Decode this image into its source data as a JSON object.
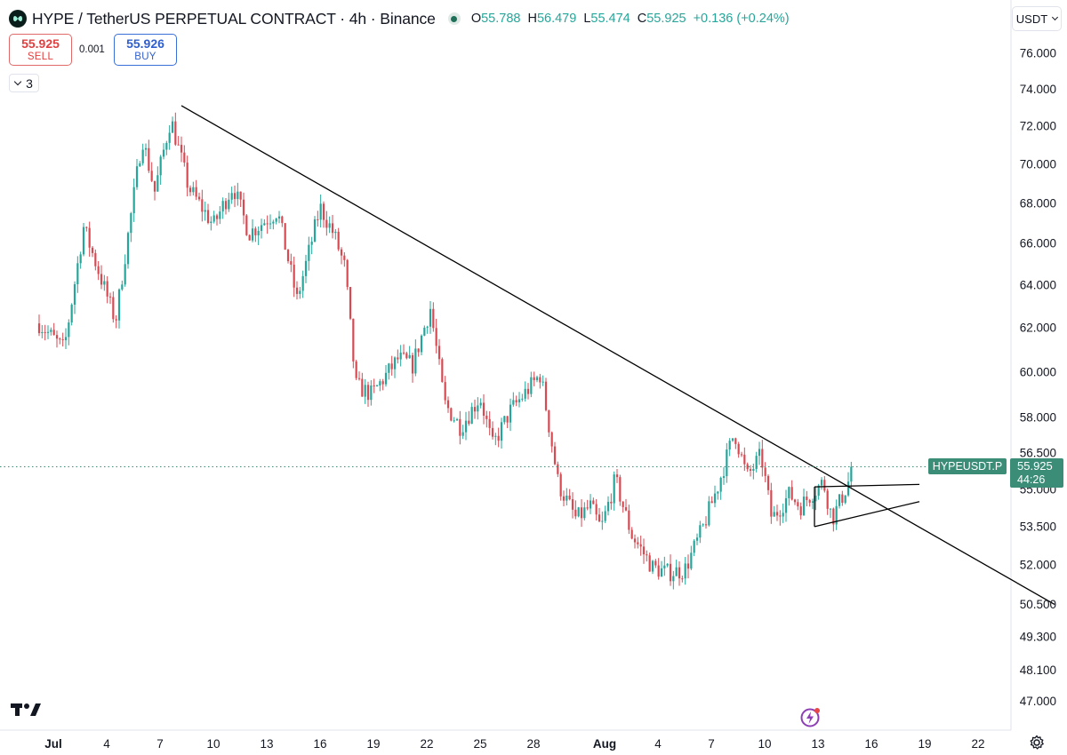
{
  "header": {
    "symbol_logo": "hyperliquid-logo",
    "title": "HYPE / TetherUS PERPETUAL CONTRACT · 4h · Binance",
    "ohlc": [
      {
        "k": "O",
        "v": "55.788"
      },
      {
        "k": "H",
        "v": "56.479"
      },
      {
        "k": "L",
        "v": "55.474"
      },
      {
        "k": "C",
        "v": "55.925"
      }
    ],
    "change": "+0.136 (+0.24%)"
  },
  "trade": {
    "sell_price": "55.925",
    "sell_label": "SELL",
    "spread": "0.001",
    "buy_price": "55.926",
    "buy_label": "BUY"
  },
  "indicators_count": "3",
  "currency": "USDT",
  "last_price": {
    "symbol": "HYPEUSDT.P",
    "price": "55.925",
    "countdown": "44:26"
  },
  "colors": {
    "up": "#26a69a",
    "down": "#d84a52",
    "label_bg": "#3c8d78",
    "trendline": "#000000"
  },
  "icons": [
    "tradingview-logo",
    "lightning-icon",
    "gear-icon",
    "chevron-down-icon"
  ],
  "chart_data": {
    "type": "candlestick",
    "title": "HYPE / TetherUS PERPETUAL CONTRACT · 4h · Binance",
    "interval": "4h",
    "y_scale": "log",
    "ylim": [
      46.3,
      77.8
    ],
    "y_ticks": [
      "76.000",
      "74.000",
      "72.000",
      "70.000",
      "68.000",
      "66.000",
      "64.000",
      "62.000",
      "60.000",
      "58.000",
      "56.500",
      "55.000",
      "53.500",
      "52.000",
      "50.500",
      "49.300",
      "48.100",
      "47.000"
    ],
    "y_tick_values": [
      76,
      74,
      72,
      70,
      68,
      66,
      64,
      62,
      60,
      58,
      56.5,
      55,
      53.5,
      52,
      50.5,
      49.3,
      48.1,
      47
    ],
    "x_ticks": [
      "Jul",
      "4",
      "7",
      "10",
      "13",
      "16",
      "19",
      "22",
      "25",
      "28",
      "Aug",
      "4",
      "7",
      "10",
      "13",
      "16",
      "19",
      "22"
    ],
    "x_tick_days": [
      0,
      3,
      6,
      9,
      12,
      15,
      18,
      21,
      24,
      27,
      31,
      34,
      37,
      40,
      43,
      46,
      49,
      52
    ],
    "x_axis_start": "2025-07-01",
    "current_price": 55.925,
    "anchors": [
      {
        "day": -0.8,
        "price": 62.2
      },
      {
        "day": 0.6,
        "price": 61.0
      },
      {
        "day": 1.7,
        "price": 66.8
      },
      {
        "day": 3.5,
        "price": 62.3
      },
      {
        "day": 5.0,
        "price": 71.4
      },
      {
        "day": 5.7,
        "price": 68.6
      },
      {
        "day": 6.6,
        "price": 72.4
      },
      {
        "day": 7.6,
        "price": 68.8
      },
      {
        "day": 9.0,
        "price": 66.9
      },
      {
        "day": 10.1,
        "price": 68.9
      },
      {
        "day": 11.0,
        "price": 66.5
      },
      {
        "day": 12.6,
        "price": 67.6
      },
      {
        "day": 13.7,
        "price": 63.3
      },
      {
        "day": 15.0,
        "price": 67.8
      },
      {
        "day": 15.8,
        "price": 66.4
      },
      {
        "day": 16.4,
        "price": 64.8
      },
      {
        "day": 17.0,
        "price": 59.4
      },
      {
        "day": 17.9,
        "price": 59.0
      },
      {
        "day": 19.4,
        "price": 60.6
      },
      {
        "day": 20.2,
        "price": 60.3
      },
      {
        "day": 21.2,
        "price": 62.9
      },
      {
        "day": 22.0,
        "price": 58.6
      },
      {
        "day": 22.9,
        "price": 57.6
      },
      {
        "day": 24.0,
        "price": 58.9
      },
      {
        "day": 24.7,
        "price": 56.8
      },
      {
        "day": 25.7,
        "price": 58.3
      },
      {
        "day": 27.4,
        "price": 59.9
      },
      {
        "day": 28.4,
        "price": 55.2
      },
      {
        "day": 29.4,
        "price": 53.8
      },
      {
        "day": 30.2,
        "price": 54.3
      },
      {
        "day": 30.8,
        "price": 53.4
      },
      {
        "day": 31.6,
        "price": 55.4
      },
      {
        "day": 32.5,
        "price": 53.2
      },
      {
        "day": 33.7,
        "price": 51.9
      },
      {
        "day": 34.5,
        "price": 51.7
      },
      {
        "day": 35.5,
        "price": 51.8
      },
      {
        "day": 36.5,
        "price": 53.4
      },
      {
        "day": 37.4,
        "price": 55.2
      },
      {
        "day": 38.3,
        "price": 57.4
      },
      {
        "day": 39.0,
        "price": 55.5
      },
      {
        "day": 39.8,
        "price": 56.4
      },
      {
        "day": 40.4,
        "price": 53.8
      },
      {
        "day": 41.4,
        "price": 54.8
      },
      {
        "day": 42.0,
        "price": 54.3
      },
      {
        "day": 42.6,
        "price": 54.8
      },
      {
        "day": 43.3,
        "price": 55.3
      },
      {
        "day": 43.8,
        "price": 53.8
      },
      {
        "day": 44.6,
        "price": 55.1
      },
      {
        "day": 45.0,
        "price": 55.93
      }
    ],
    "trendlines": [
      {
        "name": "main-downtrend",
        "from": {
          "day": 7.2,
          "price": 73.1
        },
        "to": {
          "day": 56.3,
          "price": 50.5
        }
      },
      {
        "name": "triangle-upper",
        "from": {
          "day": 42.8,
          "price": 55.1
        },
        "to": {
          "day": 48.7,
          "price": 55.2
        }
      },
      {
        "name": "triangle-lower",
        "from": {
          "day": 42.8,
          "price": 53.5
        },
        "to": {
          "day": 48.7,
          "price": 54.5
        }
      },
      {
        "name": "triangle-left-edge",
        "from": {
          "day": 42.8,
          "price": 53.5
        },
        "to": {
          "day": 42.8,
          "price": 55.1
        }
      }
    ]
  }
}
